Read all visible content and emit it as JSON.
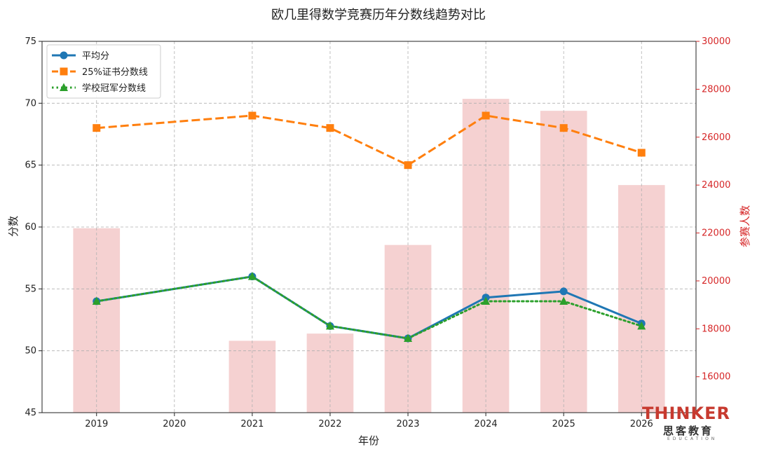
{
  "chart_data": {
    "type": "line",
    "title": "欧几里得数学竞赛历年分数线趋势对比",
    "xlabel": "年份",
    "ylabel": "分数",
    "y2label": "参赛人数",
    "x": [
      2019,
      2020,
      2021,
      2022,
      2023,
      2024,
      2025,
      2026
    ],
    "xlim": [
      2018.3,
      2026.7
    ],
    "ylim": [
      45,
      75
    ],
    "y2lim": [
      14500,
      30000
    ],
    "yticks": [
      45,
      50,
      55,
      60,
      65,
      70,
      75
    ],
    "y2ticks": [
      16000,
      18000,
      20000,
      22000,
      24000,
      26000,
      28000,
      30000
    ],
    "grid": true,
    "legend_position": "top-left",
    "series": [
      {
        "name": "平均分",
        "kind": "line",
        "axis": "left",
        "color": "#1f77b4",
        "marker": "circle",
        "style": "solid",
        "values": [
          54.0,
          null,
          56.0,
          52.0,
          51.0,
          54.3,
          54.8,
          52.2
        ]
      },
      {
        "name": "25%证书分数线",
        "kind": "line",
        "axis": "left",
        "color": "#ff7f0e",
        "marker": "square",
        "style": "dashed",
        "values": [
          68,
          null,
          69,
          68,
          65,
          69,
          68,
          66
        ]
      },
      {
        "name": "学校冠军分数线",
        "kind": "line",
        "axis": "left",
        "color": "#2ca02c",
        "marker": "triangle",
        "style": "dotted",
        "values": [
          54,
          null,
          56,
          52,
          51,
          54,
          54,
          52
        ]
      },
      {
        "kind": "bar",
        "axis": "right",
        "color": "#f4cccc",
        "values": [
          22200,
          null,
          17500,
          17800,
          21500,
          27600,
          27100,
          24000
        ]
      }
    ]
  },
  "logo": {
    "main": "THINKER",
    "sub": "思客教育",
    "tagline": "EDUCATION",
    "accent": "#c73a2f"
  }
}
